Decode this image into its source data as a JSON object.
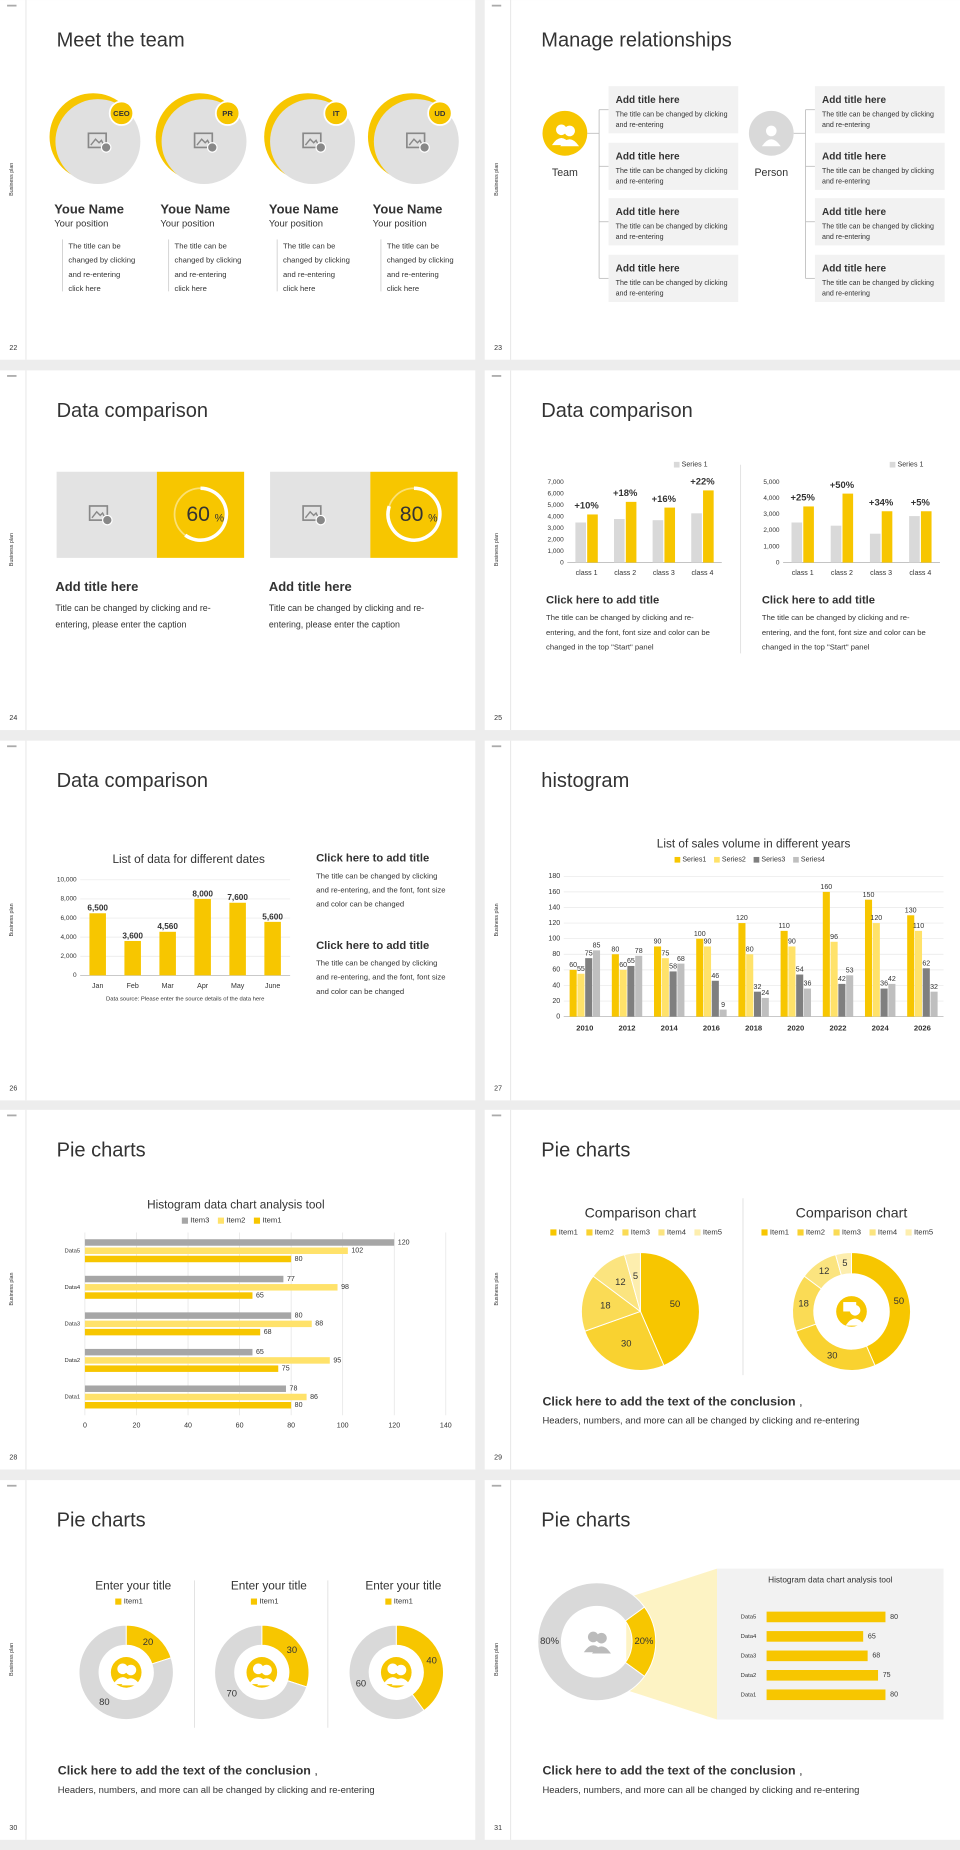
{
  "sidebar_label": "Business plan",
  "slides": [
    {
      "number": 22,
      "title": "Meet the team",
      "members": [
        {
          "badge": "CEO",
          "name": "Youe Name",
          "position": "Your position",
          "description": [
            "The title can be",
            "changed by clicking",
            "and re-entering",
            "click here"
          ]
        },
        {
          "badge": "PR",
          "name": "Youe Name",
          "position": "Your position",
          "description": [
            "The title can be",
            "changed by clicking",
            "and re-entering",
            "click here"
          ]
        },
        {
          "badge": "IT",
          "name": "Youe Name",
          "position": "Your position",
          "description": [
            "The title can be",
            "changed by clicking",
            "and re-entering",
            "click here"
          ]
        },
        {
          "badge": "UD",
          "name": "Youe Name",
          "position": "Your position",
          "description": [
            "The title can be",
            "changed by clicking",
            "and re-entering",
            "click here"
          ]
        }
      ]
    },
    {
      "number": 23,
      "title": "Manage relationships",
      "groups": [
        {
          "label": "Team",
          "items": [
            {
              "title": "Add title here",
              "text": [
                "The title can be changed by clicking",
                "and re-entering"
              ]
            },
            {
              "title": "Add title here",
              "text": [
                "The title can be changed by clicking",
                "and re-entering"
              ]
            },
            {
              "title": "Add title here",
              "text": [
                "The title can be changed by clicking",
                "and re-entering"
              ]
            },
            {
              "title": "Add title here",
              "text": [
                "The title can be changed by clicking",
                "and re-entering"
              ]
            }
          ]
        },
        {
          "label": "Person",
          "items": [
            {
              "title": "Add title here",
              "text": [
                "The title can be changed by clicking",
                "and re-entering"
              ]
            },
            {
              "title": "Add title here",
              "text": [
                "The title can be changed by clicking",
                "and re-entering"
              ]
            },
            {
              "title": "Add title here",
              "text": [
                "The title can be changed by clicking",
                "and re-entering"
              ]
            },
            {
              "title": "Add title here",
              "text": [
                "The title can be changed by clicking",
                "and re-entering"
              ]
            }
          ]
        }
      ]
    },
    {
      "number": 24,
      "title": "Data comparison",
      "panels": [
        {
          "value": 60,
          "unit": "%",
          "heading": "Add title here",
          "text": [
            "Title can be changed by clicking and re-",
            "entering, please enter the caption"
          ]
        },
        {
          "value": 80,
          "unit": "%",
          "heading": "Add title here",
          "text": [
            "Title can be changed by clicking and re-",
            "entering, please enter the caption"
          ]
        }
      ]
    },
    {
      "number": 25,
      "title": "Data comparison",
      "charts": [
        {
          "type": "bar",
          "categories": [
            "class 1",
            "class 2",
            "class 3",
            "class 4"
          ],
          "series": [
            {
              "name": "Series 1",
              "color": "#d9d9d9",
              "values": [
                3500,
                3800,
                3700,
                4300
              ]
            },
            {
              "color": "#f7c600",
              "values": [
                4200,
                5300,
                4800,
                6300
              ]
            }
          ],
          "annotations": [
            "+10%",
            "+18%",
            "+16%",
            "+22%"
          ],
          "ylim": [
            0,
            7000
          ],
          "yticks": [
            0,
            {
              "value": 1000,
              "label": "1,000"
            },
            {
              "value": 2000,
              "label": "2,000"
            },
            {
              "value": 3000,
              "label": "3,000"
            },
            {
              "value": 4000,
              "label": "4,000"
            },
            {
              "value": 5000,
              "label": "5,000"
            },
            {
              "value": 6000,
              "label": "6,000"
            },
            {
              "value": 7000,
              "label": "7,000"
            }
          ],
          "grid": false,
          "heading": "Click here to add title",
          "text": [
            "The title can be changed by clicking and re-",
            "entering, and the font, font size and color can be",
            "changed in the top \"Start\" panel"
          ]
        },
        {
          "type": "bar",
          "categories": [
            "class 1",
            "class 2",
            "class 3",
            "class 4"
          ],
          "series": [
            {
              "name": "Series 1",
              "color": "#d9d9d9",
              "values": [
                2500,
                2300,
                1800,
                2900
              ]
            },
            {
              "color": "#f7c600",
              "values": [
                3500,
                4300,
                3200,
                3200
              ]
            }
          ],
          "annotations": [
            "+25%",
            "+50%",
            "+34%",
            "+5%"
          ],
          "ylim": [
            0,
            5000
          ],
          "yticks": [
            0,
            {
              "value": 1000,
              "label": "1,000"
            },
            {
              "value": 2000,
              "label": "2,000"
            },
            {
              "value": 3000,
              "label": "3,000"
            },
            {
              "value": 4000,
              "label": "4,000"
            },
            {
              "value": 5000,
              "label": "5,000"
            }
          ],
          "grid": false,
          "heading": "Click here to add title",
          "text": [
            "The title can be changed by clicking and re-",
            "entering, and the font, font size and color can be",
            "changed in the top \"Start\" panel"
          ]
        }
      ]
    },
    {
      "number": 26,
      "title": "Data comparison",
      "chart": {
        "type": "bar",
        "title": "List of data for different dates",
        "categories": [
          "Jan",
          "Feb",
          "Mar",
          "Apr",
          "May",
          "June"
        ],
        "values": [
          6500,
          3600,
          4560,
          8000,
          7600,
          5600
        ],
        "value_labels": [
          "6,500",
          "3,600",
          "4,560",
          "8,000",
          "7,600",
          "5,600"
        ],
        "color": "#f7c600",
        "ylim": [
          0,
          10000
        ],
        "yticks": [
          0,
          {
            "value": 2000,
            "label": "2,000"
          },
          {
            "value": 4000,
            "label": "4,000"
          },
          {
            "value": 6000,
            "label": "6,000"
          },
          {
            "value": 8000,
            "label": "8,000"
          },
          {
            "value": 10000,
            "label": "10,000"
          }
        ],
        "grid": true,
        "footnote": "Data source: Please enter the source details of the data here"
      },
      "blocks": [
        {
          "heading": "Click here to add title",
          "text": [
            "The title can be changed by clicking",
            "and re-entering, and the font, font size",
            "and color can be changed"
          ]
        },
        {
          "heading": "Click here to add title",
          "text": [
            "The title can be changed by clicking",
            "and re-entering, and the font, font size",
            "and color can be changed"
          ]
        }
      ]
    },
    {
      "number": 27,
      "title": "histogram",
      "chart": {
        "type": "bar",
        "title": "List of sales volume in different years",
        "categories": [
          "2010",
          "2012",
          "2014",
          "2016",
          "2018",
          "2020",
          "2022",
          "2024",
          "2026"
        ],
        "series": [
          {
            "name": "Series1",
            "color": "#f7c600",
            "values": [
              60,
              80,
              90,
              100,
              120,
              110,
              160,
              150,
              130
            ]
          },
          {
            "name": "Series2",
            "color": "#ffe26a",
            "values": [
              55,
              60,
              75,
              90,
              80,
              90,
              96,
              120,
              110
            ]
          },
          {
            "name": "Series3",
            "color": "#7f7f7f",
            "values": [
              75,
              65,
              58,
              46,
              32,
              54,
              42,
              36,
              62
            ]
          },
          {
            "name": "Series4",
            "color": "#bfbfbf",
            "values": [
              85,
              78,
              68,
              9,
              24,
              36,
              53,
              42,
              32
            ]
          }
        ],
        "ylim": [
          0,
          180
        ],
        "yticks": [
          0,
          20,
          40,
          60,
          80,
          100,
          120,
          140,
          160,
          180
        ],
        "grid": true
      }
    },
    {
      "number": 28,
      "title": "Pie charts",
      "chart": {
        "type": "barh",
        "title": "Histogram data chart analysis tool",
        "categories": [
          "Data5",
          "Data4",
          "Data3",
          "Data2",
          "Data1"
        ],
        "series": [
          {
            "name": "Item3",
            "color": "#a6a6a6",
            "values": [
              120,
              77,
              80,
              65,
              78
            ]
          },
          {
            "name": "Item2",
            "color": "#ffe26a",
            "values": [
              102,
              98,
              88,
              95,
              86
            ]
          },
          {
            "name": "Item1",
            "color": "#f7c600",
            "values": [
              80,
              65,
              68,
              75,
              80
            ]
          }
        ],
        "xlim": [
          0,
          140
        ],
        "xticks": [
          0,
          20,
          40,
          60,
          80,
          100,
          120,
          140
        ],
        "grid": true
      }
    },
    {
      "number": 29,
      "title": "Pie charts",
      "charts": [
        {
          "type": "pie",
          "title": "Comparison chart",
          "categories": [
            "Item1",
            "Item2",
            "Item3",
            "Item4",
            "Item5"
          ],
          "values": [
            50,
            30,
            18,
            12,
            5
          ],
          "colors": [
            "#f7c600",
            "#f9d230",
            "#fadb55",
            "#fbe47f",
            "#fdeeae"
          ]
        },
        {
          "type": "donut",
          "title": "Comparison chart",
          "categories": [
            "Item1",
            "Item2",
            "Item3",
            "Item4",
            "Item5"
          ],
          "values": [
            50,
            30,
            18,
            12,
            5
          ],
          "colors": [
            "#f7c600",
            "#f9d230",
            "#fadb55",
            "#fbe47f",
            "#fdeeae"
          ]
        }
      ],
      "conclusion": "Click here to add the text of the conclusion",
      "comma": ",",
      "note": "Headers, numbers, and more can all be changed by clicking and re-entering"
    },
    {
      "number": 30,
      "title": "Pie charts",
      "charts": [
        {
          "type": "donut",
          "title": "Enter your title",
          "categories": [
            "Item1",
            null
          ],
          "values": [
            20,
            80
          ],
          "colors": [
            "#f7c600",
            "#d9d9d9"
          ]
        },
        {
          "type": "donut",
          "title": "Enter your title",
          "categories": [
            "Item1",
            null
          ],
          "values": [
            30,
            70
          ],
          "colors": [
            "#f7c600",
            "#d9d9d9"
          ]
        },
        {
          "type": "donut",
          "title": "Enter your title",
          "categories": [
            "Item1",
            null
          ],
          "values": [
            40,
            60
          ],
          "colors": [
            "#f7c600",
            "#d9d9d9"
          ]
        }
      ],
      "conclusion": "Click here to add the text of the conclusion",
      "comma": ",",
      "note": "Headers, numbers, and more can all be changed by clicking and re-entering"
    },
    {
      "number": 31,
      "title": "Pie charts",
      "donut": {
        "type": "donut",
        "values": [
          20,
          80
        ],
        "value_labels": [
          "20%",
          "80%"
        ],
        "colors": [
          "#f7c600",
          "#d9d9d9"
        ]
      },
      "chart": {
        "type": "barh",
        "title": "Histogram data chart analysis tool",
        "categories": [
          "Data5",
          "Data4",
          "Data3",
          "Data2",
          "Data1"
        ],
        "values": [
          80,
          65,
          68,
          75,
          80
        ],
        "color": "#f7c600"
      },
      "conclusion": "Click here to add the text of the conclusion",
      "comma": ",",
      "note": "Headers, numbers, and more can all be changed by clicking and re-entering"
    }
  ]
}
